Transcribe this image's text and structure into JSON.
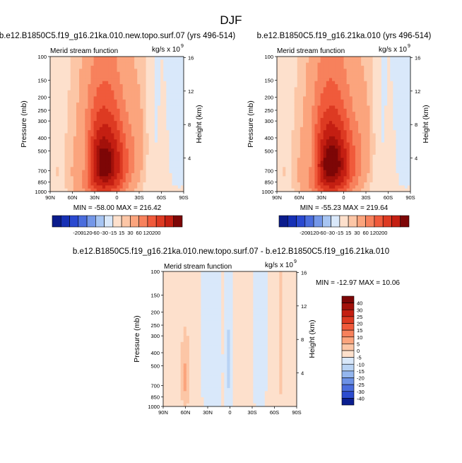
{
  "page_title": "DJF",
  "colors": {
    "pos": [
      "#fde0cc",
      "#fcc6a6",
      "#fba47d",
      "#f7815c",
      "#f05a3b",
      "#dd3a22",
      "#c41f12",
      "#a3110a",
      "#7d0606"
    ],
    "neg": [
      "#d9e8fa",
      "#b9d3f4",
      "#94b6ee",
      "#6c91e6",
      "#4a6ddd",
      "#2c4ccf",
      "#1433b3",
      "#0a1e8f"
    ]
  },
  "chart_data": [
    {
      "id": "panel1",
      "type": "heatmap",
      "title": "b.e12.B1850C5.f19_g16.21ka.010.new.topo.surf.07 (yrs 496-514)",
      "subtitle_left": "Merid stream function",
      "units_prefix": "kg/s x 10",
      "units_exp": "9",
      "xlabel": "",
      "ylabel": "Pressure (mb)",
      "y2label": "Height (km)",
      "x_ticks": [
        "90N",
        "60N",
        "30N",
        "0",
        "30S",
        "60S",
        "90S"
      ],
      "x_range": [
        90,
        -90
      ],
      "y_ticks": [
        100,
        150,
        200,
        250,
        300,
        400,
        500,
        700,
        850,
        1000
      ],
      "y_range": [
        100,
        1000
      ],
      "y2_ticks": [
        4,
        8,
        12,
        16
      ],
      "stats": "MIN = -58.00   MAX = 216.42",
      "background_level": 5,
      "blobs": [
        {
          "lat": 17,
          "p": 620,
          "wlat": 35,
          "wp": 520,
          "peak": 216,
          "power": 1.15
        },
        {
          "lat": 44,
          "p": 580,
          "wlat": 15,
          "wp": 330,
          "peak": -55,
          "power": 1.3
        },
        {
          "lat": -30,
          "p": 360,
          "wlat": 15,
          "wp": 430,
          "peak": 20,
          "power": 1.3
        },
        {
          "lat": -50,
          "p": 450,
          "wlat": 18,
          "wp": 650,
          "peak": -9,
          "power": 1.2
        },
        {
          "lat": -62,
          "p": 620,
          "wlat": 8,
          "wp": 420,
          "peak": 14,
          "power": 1.2
        },
        {
          "lat": -84,
          "p": 300,
          "wlat": 22,
          "wp": 700,
          "peak": -11,
          "power": 1.0
        },
        {
          "lat": 82,
          "p": 720,
          "wlat": 5,
          "wp": 220,
          "peak": 10,
          "power": 1.3
        },
        {
          "lat": 74,
          "p": 560,
          "wlat": 9,
          "wp": 380,
          "peak": -5,
          "power": 1.0
        }
      ]
    },
    {
      "id": "panel2",
      "type": "heatmap",
      "title": "b.e12.B1850C5.f19_g16.21ka.010 (yrs 496-514)",
      "subtitle_left": "Merid stream function",
      "units_prefix": "kg/s x 10",
      "units_exp": "9",
      "xlabel": "",
      "ylabel": "Pressure (mb)",
      "y2label": "Height (km)",
      "x_ticks": [
        "90N",
        "60N",
        "30N",
        "0",
        "30S",
        "60S",
        "90S"
      ],
      "x_range": [
        90,
        -90
      ],
      "y_ticks": [
        100,
        150,
        200,
        250,
        300,
        400,
        500,
        700,
        850,
        1000
      ],
      "y_range": [
        100,
        1000
      ],
      "y2_ticks": [
        4,
        8,
        12,
        16
      ],
      "stats": "MIN = -55.23   MAX = 219.64",
      "background_level": 5,
      "blobs": [
        {
          "lat": 17,
          "p": 620,
          "wlat": 35,
          "wp": 520,
          "peak": 220,
          "power": 1.15
        },
        {
          "lat": 44,
          "p": 580,
          "wlat": 15,
          "wp": 330,
          "peak": -53,
          "power": 1.3
        },
        {
          "lat": -30,
          "p": 360,
          "wlat": 15,
          "wp": 430,
          "peak": 20,
          "power": 1.3
        },
        {
          "lat": -50,
          "p": 450,
          "wlat": 18,
          "wp": 650,
          "peak": -9,
          "power": 1.2
        },
        {
          "lat": -62,
          "p": 620,
          "wlat": 8,
          "wp": 420,
          "peak": 14,
          "power": 1.2
        },
        {
          "lat": -84,
          "p": 300,
          "wlat": 22,
          "wp": 700,
          "peak": -11,
          "power": 1.0
        },
        {
          "lat": 82,
          "p": 720,
          "wlat": 5,
          "wp": 220,
          "peak": 10,
          "power": 1.3
        },
        {
          "lat": 74,
          "p": 560,
          "wlat": 9,
          "wp": 380,
          "peak": -5,
          "power": 1.0
        }
      ]
    },
    {
      "id": "panel3",
      "type": "heatmap",
      "title": "b.e12.B1850C5.f19_g16.21ka.010.new.topo.surf.07 - b.e12.B1850C5.f19_g16.21ka.010",
      "subtitle_left": "Merid stream function",
      "units_prefix": "kg/s x 10",
      "units_exp": "9",
      "xlabel": "",
      "ylabel": "Pressure (mb)",
      "y2label": "Height (km)",
      "x_ticks": [
        "90N",
        "60N",
        "30N",
        "0",
        "30S",
        "60S",
        "90S"
      ],
      "x_range": [
        90,
        -90
      ],
      "y_ticks": [
        100,
        150,
        200,
        250,
        300,
        400,
        500,
        700,
        850,
        1000
      ],
      "y_range": [
        100,
        1000
      ],
      "y2_ticks": [
        4,
        8,
        12,
        16
      ],
      "stats": "MIN = -12.97   MAX =  10.06",
      "background_level": 3,
      "blobs": [
        {
          "lat": 60,
          "p": 620,
          "wlat": 7,
          "wp": 360,
          "peak": 9,
          "power": 1.4
        },
        {
          "lat": 25,
          "p": 450,
          "wlat": 14,
          "wp": 1200,
          "peak": -6,
          "power": 0.8
        },
        {
          "lat": 1,
          "p": 500,
          "wlat": 6,
          "wp": 600,
          "peak": -9,
          "power": 1.2
        },
        {
          "lat": -40,
          "p": 420,
          "wlat": 16,
          "wp": 1100,
          "peak": -4,
          "power": 0.7
        },
        {
          "lat": -68,
          "p": 400,
          "wlat": 5,
          "wp": 900,
          "peak": 3,
          "power": 1.0
        },
        {
          "lat": -82,
          "p": 420,
          "wlat": 4,
          "wp": 900,
          "peak": -3,
          "power": 1.0
        }
      ]
    }
  ],
  "colorbar_top": {
    "levels": [
      "-200",
      "-120",
      "-60",
      "-30",
      "-15",
      "15",
      "30",
      "60",
      "120",
      "200"
    ],
    "colors": [
      "#0b1c8c",
      "#1630b5",
      "#2a49d0",
      "#4a6ddd",
      "#7497e8",
      "#a7c5f2",
      "#d9e8fa",
      "#fde0cc",
      "#fcc6a6",
      "#fba47d",
      "#f7815c",
      "#f05a3b",
      "#dd3a22",
      "#c41f12",
      "#7d0606"
    ]
  },
  "colorbar_diff": {
    "levels": [
      "40",
      "30",
      "25",
      "20",
      "15",
      "10",
      "5",
      "0",
      "-5",
      "-10",
      "-15",
      "-20",
      "-25",
      "-30",
      "-40"
    ],
    "colors": [
      "#7d0606",
      "#a3110a",
      "#c41f12",
      "#dd3a22",
      "#f05a3b",
      "#f7815c",
      "#fba47d",
      "#fcc6a6",
      "#fde0cc",
      "#d9e8fa",
      "#b9d3f4",
      "#94b6ee",
      "#6c91e6",
      "#4a6ddd",
      "#2c4ccf",
      "#0a1e8f"
    ]
  }
}
